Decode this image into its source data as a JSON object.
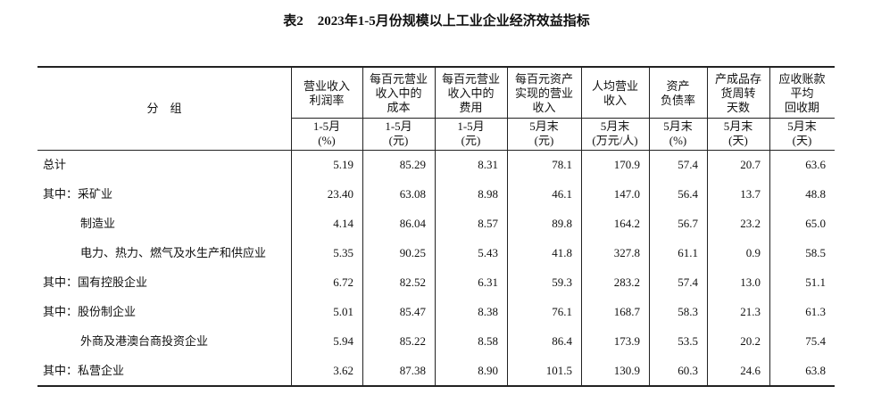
{
  "header": {
    "number": "表2",
    "title": "2023年1-5月份规模以上工业企业经济效益指标"
  },
  "table": {
    "stub": "分　组",
    "columns": [
      {
        "name": [
          "营业收入",
          "利润率"
        ],
        "unit": [
          "1-5月",
          "(%)"
        ]
      },
      {
        "name": [
          "每百元营业",
          "收入中的",
          "成本"
        ],
        "unit": [
          "1-5月",
          "(元)"
        ]
      },
      {
        "name": [
          "每百元营业",
          "收入中的",
          "费用"
        ],
        "unit": [
          "1-5月",
          "(元)"
        ]
      },
      {
        "name": [
          "每百元资产",
          "实现的营业",
          "收入"
        ],
        "unit": [
          "5月末",
          "(元)"
        ]
      },
      {
        "name": [
          "人均营业",
          "收入"
        ],
        "unit": [
          "5月末",
          "(万元/人)"
        ]
      },
      {
        "name": [
          "资产",
          "负债率"
        ],
        "unit": [
          "5月末",
          "(%)"
        ]
      },
      {
        "name": [
          "产成品存",
          "货周转",
          "天数"
        ],
        "unit": [
          "5月末",
          "(天)"
        ]
      },
      {
        "name": [
          "应收账款",
          "平均",
          "回收期"
        ],
        "unit": [
          "5月末",
          "(天)"
        ]
      }
    ],
    "rows": [
      {
        "label": "总计",
        "values": [
          "5.19",
          "85.29",
          "8.31",
          "78.1",
          "170.9",
          "57.4",
          "20.7",
          "63.6"
        ]
      },
      {
        "label": "其中：采矿业",
        "values": [
          "23.40",
          "63.08",
          "8.98",
          "46.1",
          "147.0",
          "56.4",
          "13.7",
          "48.8"
        ]
      },
      {
        "label": "制造业",
        "values": [
          "4.14",
          "86.04",
          "8.57",
          "89.8",
          "164.2",
          "56.7",
          "23.2",
          "65.0"
        ]
      },
      {
        "label": "电力、热力、燃气及水生产和供应业",
        "values": [
          "5.35",
          "90.25",
          "5.43",
          "41.8",
          "327.8",
          "61.1",
          "0.9",
          "58.5"
        ]
      },
      {
        "label": "其中：国有控股企业",
        "values": [
          "6.72",
          "82.52",
          "6.31",
          "59.3",
          "283.2",
          "57.4",
          "13.0",
          "51.1"
        ]
      },
      {
        "label": "其中：股份制企业",
        "values": [
          "5.01",
          "85.47",
          "8.38",
          "76.1",
          "168.7",
          "58.3",
          "21.3",
          "61.3"
        ]
      },
      {
        "label": "外商及港澳台商投资企业",
        "values": [
          "5.94",
          "85.22",
          "8.58",
          "86.4",
          "173.9",
          "53.5",
          "20.2",
          "75.4"
        ]
      },
      {
        "label": "其中：私营企业",
        "values": [
          "3.62",
          "87.38",
          "8.90",
          "101.5",
          "130.9",
          "60.3",
          "24.6",
          "63.8"
        ]
      }
    ]
  }
}
